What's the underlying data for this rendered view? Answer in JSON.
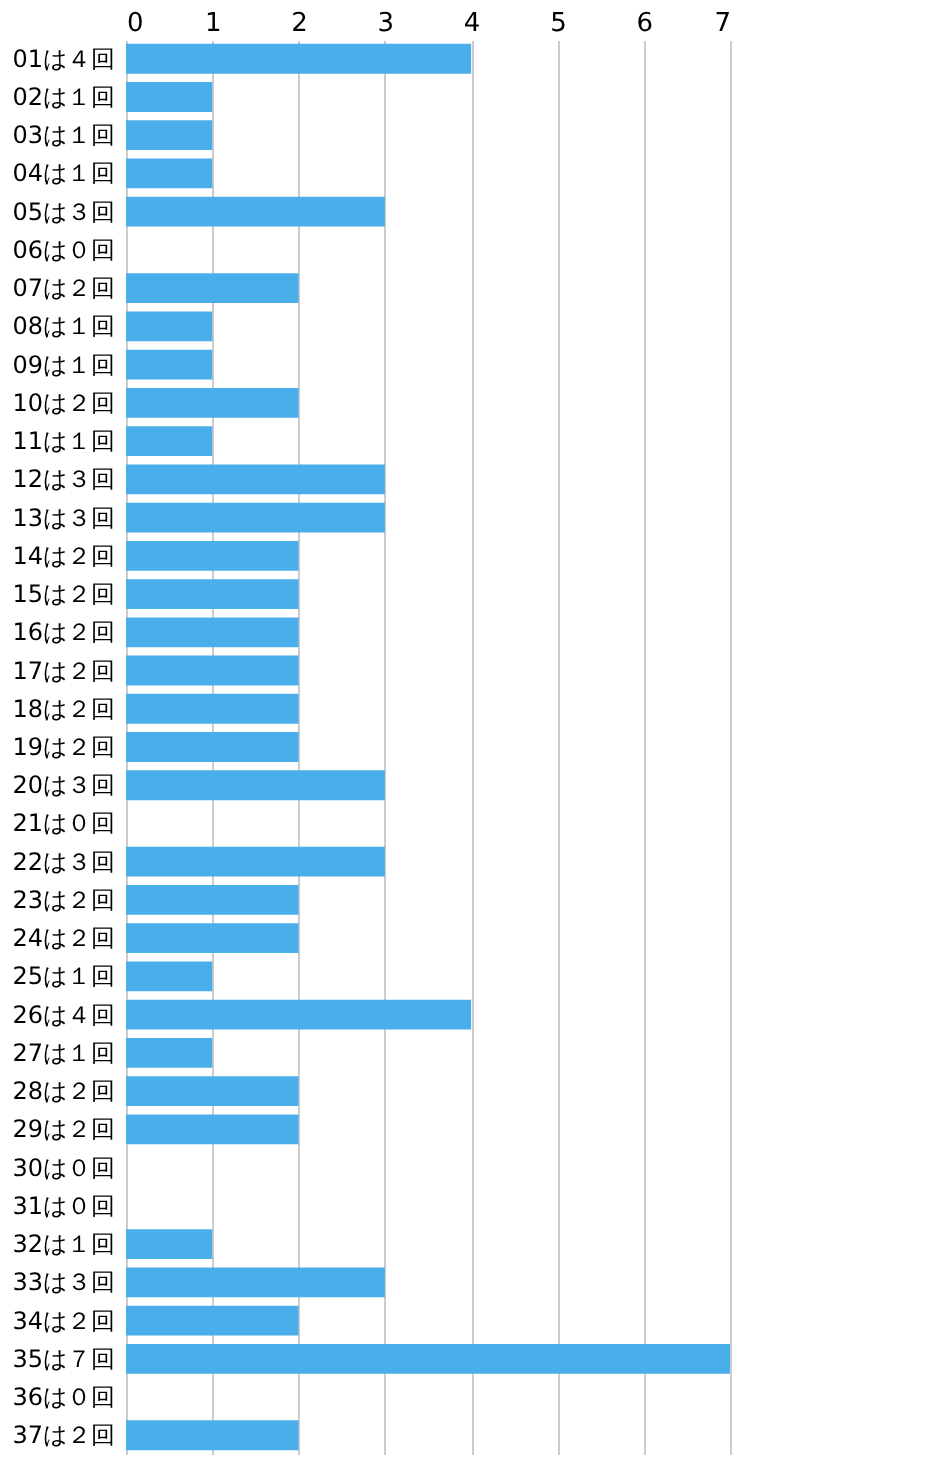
{
  "chart_data": {
    "type": "bar",
    "orientation": "horizontal",
    "categories": [
      "01は４回",
      "02は１回",
      "03は１回",
      "04は１回",
      "05は３回",
      "06は０回",
      "07は２回",
      "08は１回",
      "09は１回",
      "10は２回",
      "11は１回",
      "12は３回",
      "13は３回",
      "14は２回",
      "15は２回",
      "16は２回",
      "17は２回",
      "18は２回",
      "19は２回",
      "20は３回",
      "21は０回",
      "22は３回",
      "23は２回",
      "24は２回",
      "25は１回",
      "26は４回",
      "27は１回",
      "28は２回",
      "29は２回",
      "30は０回",
      "31は０回",
      "32は１回",
      "33は３回",
      "34は２回",
      "35は７回",
      "36は０回",
      "37は２回"
    ],
    "values": [
      4,
      1,
      1,
      1,
      3,
      0,
      2,
      1,
      1,
      2,
      1,
      3,
      3,
      2,
      2,
      2,
      2,
      2,
      2,
      3,
      0,
      3,
      2,
      2,
      1,
      4,
      1,
      2,
      2,
      0,
      0,
      1,
      3,
      2,
      7,
      0,
      2
    ],
    "color": "#4aaeea",
    "xlim": [
      0,
      7
    ],
    "xticks": [
      0,
      1,
      2,
      3,
      4,
      5,
      6,
      7
    ],
    "grid": "x"
  }
}
